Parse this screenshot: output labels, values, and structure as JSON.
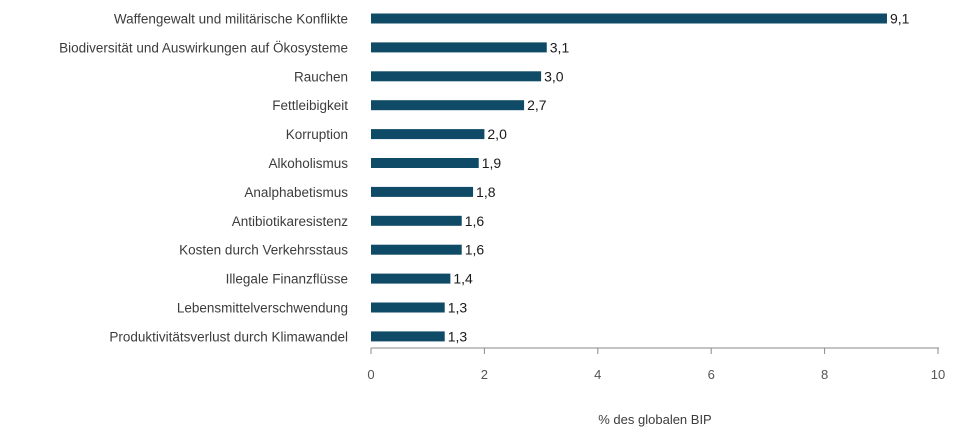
{
  "chart_data": {
    "type": "bar",
    "orientation": "horizontal",
    "title": "",
    "xlabel": "% des globalen BIP",
    "ylabel": "",
    "xlim": [
      0,
      10
    ],
    "xticks": [
      "0",
      "2",
      "4",
      "6",
      "8",
      "10"
    ],
    "grid": false,
    "bar_color": "#0f4a66",
    "categories": [
      "Waffengewalt und militärische Konflikte",
      "Biodiversität und Auswirkungen auf Ökosysteme",
      "Rauchen",
      "Fettleibigkeit",
      "Korruption",
      "Alkoholismus",
      "Analphabetismus",
      "Antibiotikaresistenz",
      "Kosten durch Verkehrsstaus",
      "Illegale Finanzflüsse",
      "Lebensmittelverschwendung",
      "Produktivitätsverlust durch Klimawandel"
    ],
    "values": [
      9.1,
      3.1,
      3.0,
      2.7,
      2.0,
      1.9,
      1.8,
      1.6,
      1.6,
      1.4,
      1.3,
      1.3
    ],
    "value_labels": [
      "9,1",
      "3,1",
      "3,0",
      "2,7",
      "2,0",
      "1,9",
      "1,8",
      "1,6",
      "1,6",
      "1,4",
      "1,3",
      "1,3"
    ]
  }
}
